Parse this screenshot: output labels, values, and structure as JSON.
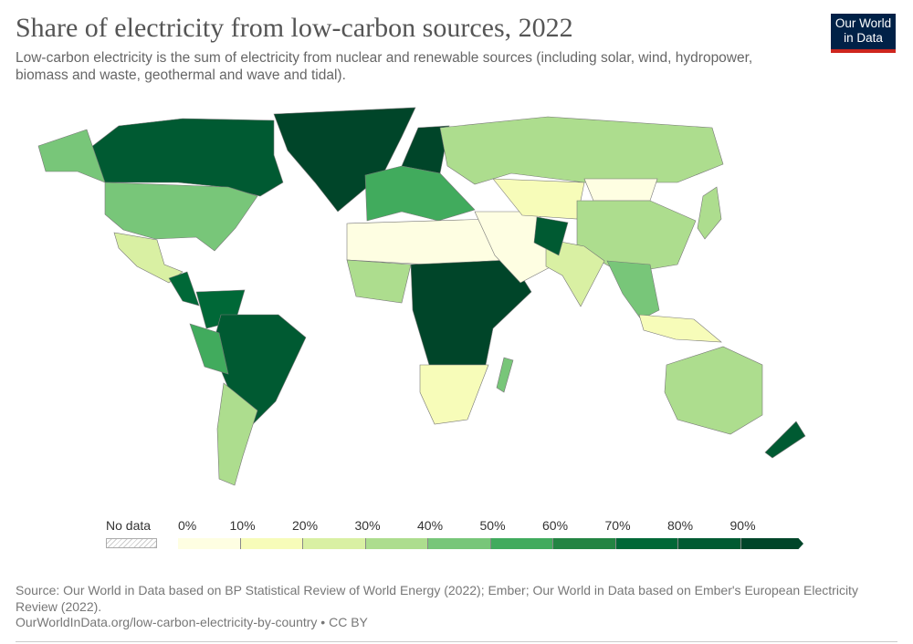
{
  "title": "Share of electricity from low-carbon sources, 2022",
  "subtitle": "Low-carbon electricity is the sum of electricity from nuclear and renewable sources (including solar, wind, hydropower, biomass and waste, geothermal and wave and tidal).",
  "logo": {
    "line1": "Our World",
    "line2": "in Data"
  },
  "legend": {
    "no_data": "No data",
    "ticks": [
      "0%",
      "10%",
      "20%",
      "30%",
      "40%",
      "50%",
      "60%",
      "70%",
      "80%",
      "90%"
    ],
    "colors": [
      "#fefee2",
      "#f7fcb9",
      "#d9f0a3",
      "#addd8e",
      "#78c679",
      "#41ab5d",
      "#238443",
      "#006837",
      "#005a32",
      "#004529"
    ]
  },
  "regions": [
    {
      "name": "Greenland",
      "share": 100
    },
    {
      "name": "Canada",
      "share": 83
    },
    {
      "name": "Alaska",
      "share": 40
    },
    {
      "name": "United States",
      "share": 40
    },
    {
      "name": "Mexico",
      "share": 24
    },
    {
      "name": "Central America",
      "share": 75
    },
    {
      "name": "Colombia and Venezuela",
      "share": 75
    },
    {
      "name": "Brazil",
      "share": 89
    },
    {
      "name": "Peru",
      "share": 55
    },
    {
      "name": "Argentina and Chile",
      "share": 38
    },
    {
      "name": "Scandinavia",
      "share": 98
    },
    {
      "name": "Europe",
      "share": 55
    },
    {
      "name": "Russia",
      "share": 37
    },
    {
      "name": "North Africa",
      "share": 5
    },
    {
      "name": "West Africa",
      "share": 30
    },
    {
      "name": "Central and East Africa",
      "share": 90
    },
    {
      "name": "Southern Africa",
      "share": 15
    },
    {
      "name": "Madagascar",
      "share": 45
    },
    {
      "name": "Middle East",
      "share": 3
    },
    {
      "name": "Central Asia",
      "share": 12
    },
    {
      "name": "Mongolia",
      "share": 8
    },
    {
      "name": "China",
      "share": 35
    },
    {
      "name": "India",
      "share": 23
    },
    {
      "name": "Pakistan and Afghanistan",
      "share": 80
    },
    {
      "name": "Southeast Asia",
      "share": 45
    },
    {
      "name": "Indonesia",
      "share": 18
    },
    {
      "name": "Japan",
      "share": 30
    },
    {
      "name": "Australia",
      "share": 32
    },
    {
      "name": "New Zealand",
      "share": 87
    }
  ],
  "footer": {
    "source": "Source: Our World in Data based on BP Statistical Review of World Energy (2022); Ember; Our World in Data based on Ember's European Electricity Review (2022).",
    "url": "OurWorldInData.org/low-carbon-electricity-by-country • CC BY"
  }
}
